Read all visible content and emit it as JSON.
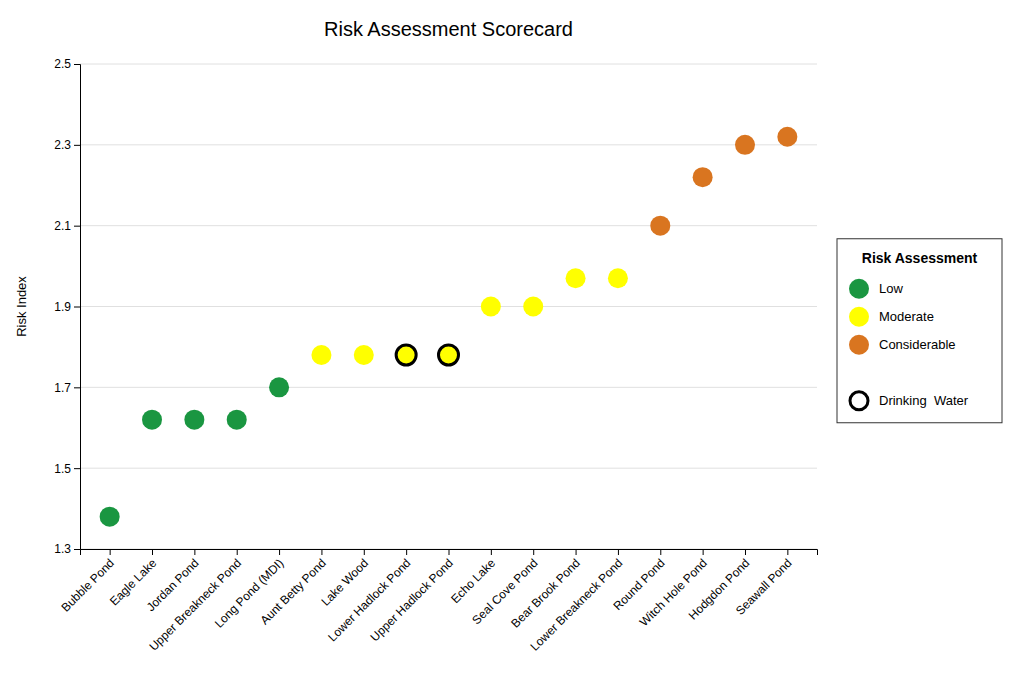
{
  "chart_data": {
    "type": "scatter",
    "title": "Risk Assessment Scorecard",
    "y_label": "Risk Index",
    "categories": [
      "Bubble Pond",
      "Eagle Lake",
      "Jordan Pond",
      "Upper Breakneck Pond",
      "Long Pond (MDI)",
      "Aunt Betty Pond",
      "Lake Wood",
      "Lower Hadlock Pond",
      "Upper Hadlock Pond",
      "Echo Lake",
      "Seal Cove Pond",
      "Bear Brook Pond",
      "Lower Breakneck Pond",
      "Round Pond",
      "Witch Hole Pond",
      "Hodgdon Pond",
      "Seawall Pond"
    ],
    "values": [
      1.38,
      1.62,
      1.62,
      1.62,
      1.7,
      1.78,
      1.78,
      1.78,
      1.78,
      1.9,
      1.9,
      1.97,
      1.97,
      2.1,
      2.22,
      2.3,
      2.32
    ],
    "colors": [
      "#1a9641",
      "#1a9641",
      "#1a9641",
      "#1a9641",
      "#1a9641",
      "#ffff00",
      "#ffff00",
      "#ffff00",
      "#ffff00",
      "#ffff00",
      "#ffff00",
      "#ffff00",
      "#ffff00",
      "#d97520",
      "#d97520",
      "#d97520",
      "#d97520"
    ],
    "drinking_water": [
      false,
      false,
      false,
      false,
      false,
      false,
      false,
      true,
      true,
      false,
      false,
      false,
      false,
      false,
      false,
      false,
      false
    ],
    "drinking_water_label": "Drinking  Water",
    "legend_title": "Risk Assessment",
    "legend_items": [
      {
        "name": "Low",
        "color": "#1a9641"
      },
      {
        "name": "Moderate",
        "color": "#ffff00"
      },
      {
        "name": "Considerable",
        "color": "#d97520"
      }
    ],
    "ylim": [
      1.3,
      2.5
    ],
    "yticks": [
      1.3,
      1.5,
      1.7,
      1.9,
      2.1,
      2.3,
      2.5
    ],
    "grid": true,
    "legend": "right"
  }
}
